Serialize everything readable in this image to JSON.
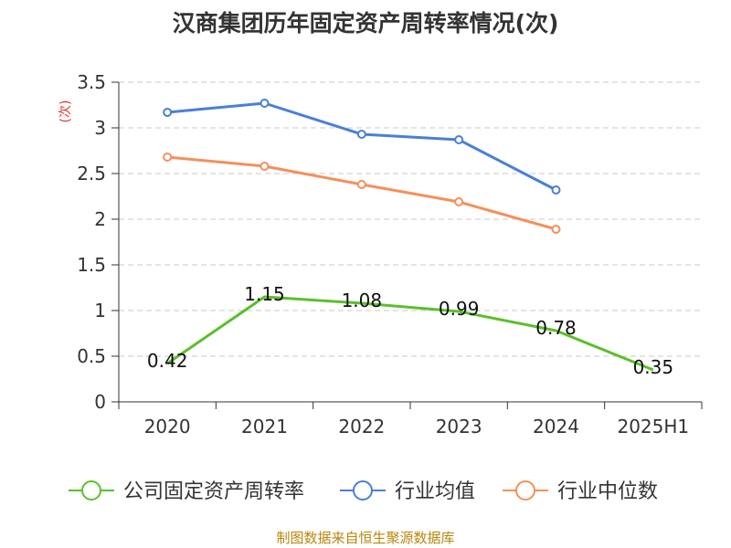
{
  "chart_title": "汉商集团历年固定资产周转率情况(次)",
  "source_note": "制图数据来自恒生聚源数据库",
  "chart_data": {
    "type": "line",
    "title": "汉商集团历年固定资产周转率情况(次)",
    "ylabel": "(次)",
    "xlabel": "",
    "categories": [
      "2020",
      "2021",
      "2022",
      "2023",
      "2024",
      "2025H1"
    ],
    "ylim": [
      0,
      3.5
    ],
    "yticks": [
      "0",
      "0.5",
      "1",
      "1.5",
      "2",
      "2.5",
      "3",
      "3.5"
    ],
    "grid": true,
    "legend_position": "bottom",
    "series": [
      {
        "name": "公司固定资产周转率",
        "color": "#5cbf2a",
        "values": [
          0.42,
          1.15,
          1.08,
          0.99,
          0.78,
          0.35
        ],
        "labels": [
          "0.42",
          "1.15",
          "1.08",
          "0.99",
          "0.78",
          "0.35"
        ]
      },
      {
        "name": "行业均值",
        "color": "#4a7fd8",
        "values": [
          3.17,
          3.27,
          2.93,
          2.87,
          2.32,
          null
        ]
      },
      {
        "name": "行业中位数",
        "color": "#f4905a",
        "values": [
          2.68,
          2.58,
          2.38,
          2.19,
          1.89,
          null
        ]
      }
    ]
  }
}
